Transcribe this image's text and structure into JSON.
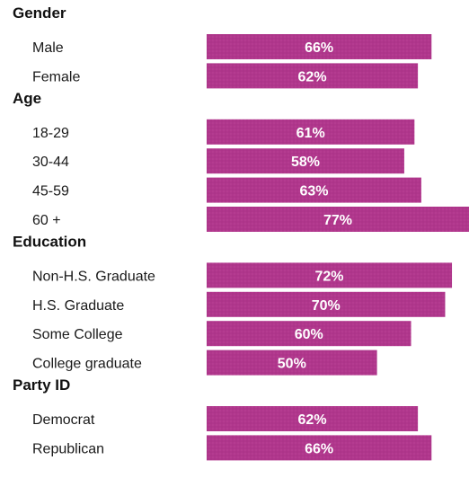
{
  "chart_data": {
    "type": "bar",
    "orientation": "horizontal",
    "title": "",
    "xlabel": "",
    "ylabel": "",
    "xlim": [
      0,
      100
    ],
    "grid": false,
    "legend": "none",
    "bar_color": "#b0368c",
    "groups": [
      {
        "name": "Gender",
        "categories": [
          "Male",
          "Female"
        ],
        "values": [
          66,
          62
        ],
        "labels": [
          "66%",
          "62%"
        ]
      },
      {
        "name": "Age",
        "categories": [
          "18-29",
          "30-44",
          "45-59",
          "60 +"
        ],
        "values": [
          61,
          58,
          63,
          77
        ],
        "labels": [
          "61%",
          "58%",
          "63%",
          "77%"
        ]
      },
      {
        "name": "Education",
        "categories": [
          "Non-H.S. Graduate",
          "H.S. Graduate",
          "Some College",
          "College graduate"
        ],
        "values": [
          72,
          70,
          60,
          50
        ],
        "labels": [
          "72%",
          "70%",
          "60%",
          "50%"
        ]
      },
      {
        "name": "Party ID",
        "categories": [
          "Democrat",
          "Republican"
        ],
        "values": [
          62,
          66
        ],
        "labels": [
          "62%",
          "66%"
        ]
      }
    ]
  }
}
